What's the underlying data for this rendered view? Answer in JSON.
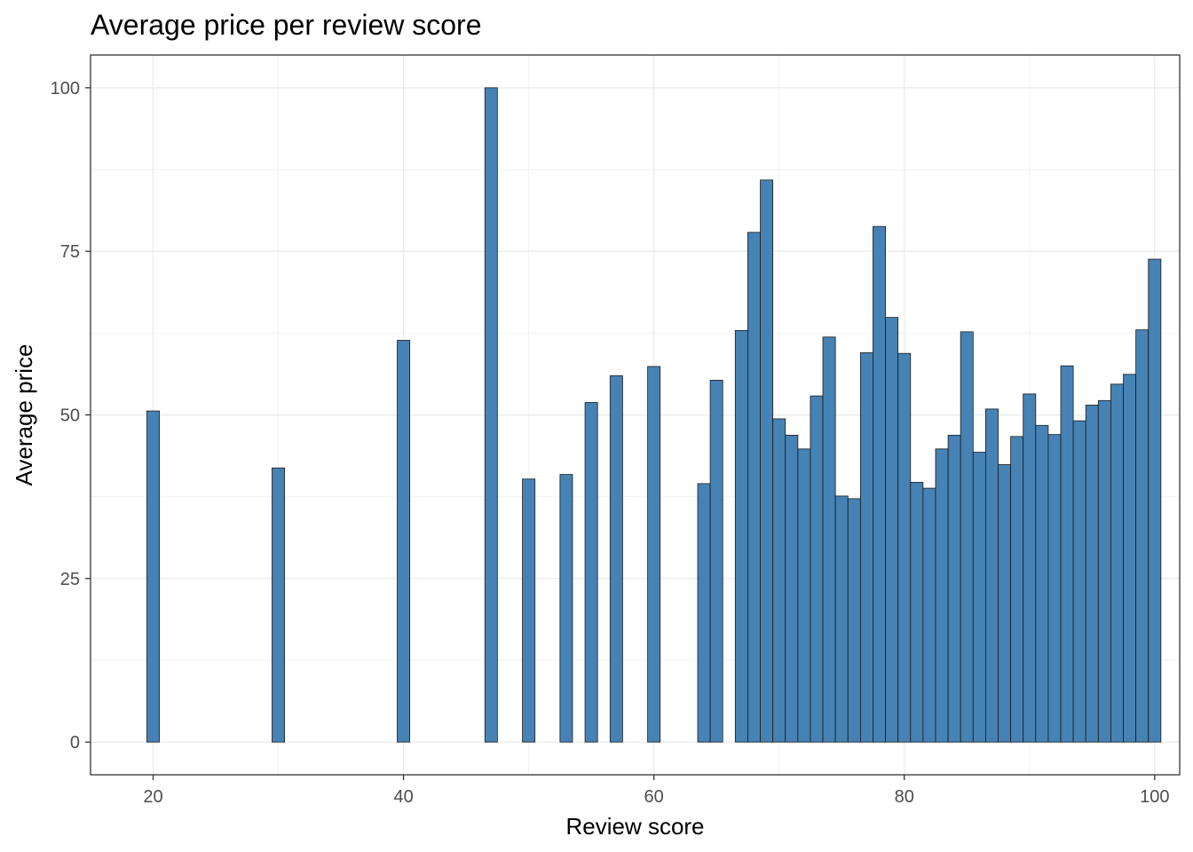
{
  "chart_data": {
    "type": "bar",
    "title": "Average price per review score",
    "xlabel": "Review score",
    "ylabel": "Average price",
    "xlim": [
      15,
      102
    ],
    "ylim": [
      -5,
      105
    ],
    "x_ticks": [
      20,
      40,
      60,
      80,
      100
    ],
    "y_ticks": [
      0,
      25,
      50,
      75,
      100
    ],
    "grid": true,
    "bar_color": "#4682B4",
    "bar_edge_color": "#1a1a1a",
    "x": [
      20,
      30,
      40,
      47,
      50,
      53,
      55,
      57,
      60,
      64,
      65,
      67,
      68,
      69,
      70,
      71,
      72,
      73,
      74,
      75,
      76,
      77,
      78,
      79,
      80,
      81,
      82,
      83,
      84,
      85,
      86,
      87,
      88,
      89,
      90,
      91,
      92,
      93,
      94,
      95,
      96,
      97,
      98,
      99,
      100
    ],
    "values": [
      50.6,
      41.9,
      61.4,
      100.0,
      40.2,
      40.9,
      51.9,
      56.0,
      57.4,
      39.5,
      55.3,
      62.9,
      77.9,
      85.9,
      49.4,
      46.9,
      44.8,
      52.9,
      61.9,
      37.6,
      37.2,
      59.5,
      78.8,
      64.9,
      59.4,
      39.7,
      38.8,
      44.8,
      46.9,
      62.7,
      44.3,
      50.9,
      42.4,
      46.7,
      53.2,
      48.4,
      47.0,
      57.5,
      49.1,
      51.5,
      52.2,
      54.7,
      56.2,
      63.0,
      73.8
    ]
  }
}
